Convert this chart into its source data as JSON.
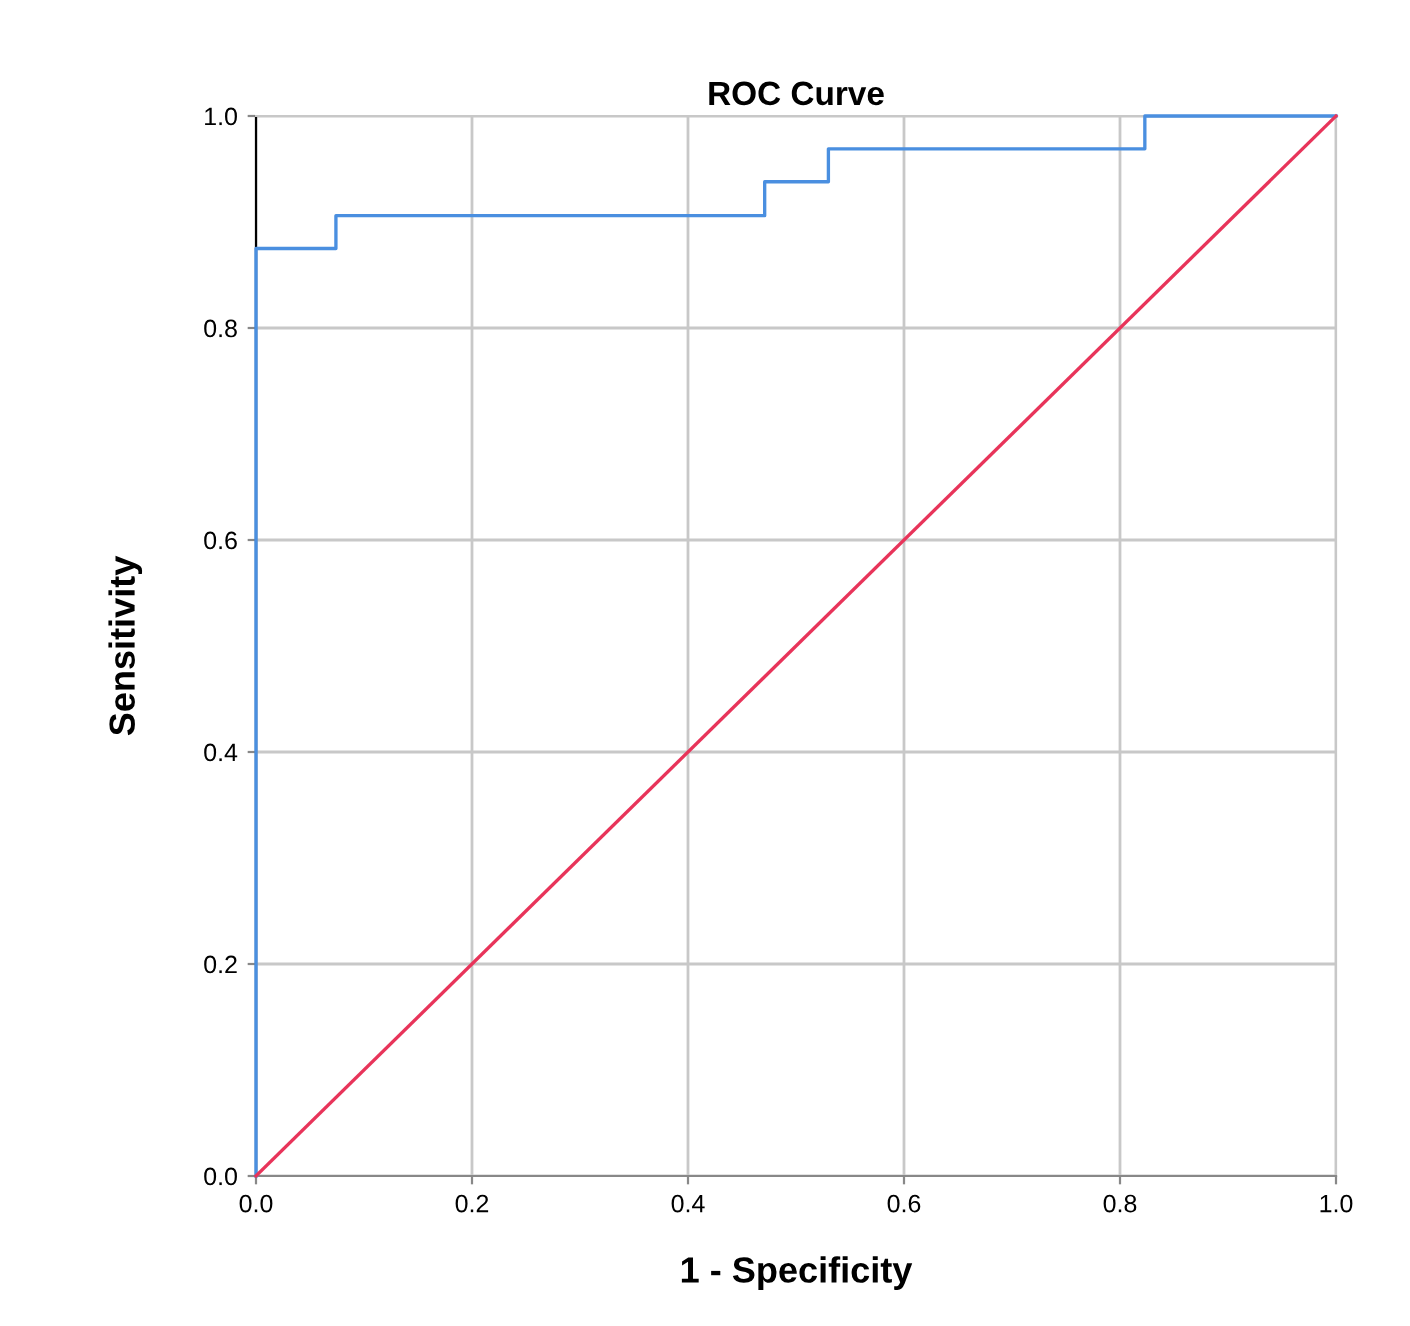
{
  "chart_data": {
    "type": "line",
    "title": "ROC Curve",
    "xlabel": "1 - Specificity",
    "ylabel": "Sensitivity",
    "series": [
      {
        "type": "step",
        "color": "#4a8fe0",
        "x": [
          0,
          0,
          0.074,
          0.471,
          0.53,
          0.823,
          1
        ],
        "values": [
          0,
          0.875,
          0.906,
          0.938,
          0.969,
          1,
          1
        ]
      },
      {
        "color": "#e8345a",
        "x": [
          0,
          1
        ],
        "values": [
          0,
          1
        ]
      }
    ],
    "xlim": [
      0,
      1
    ],
    "ylim": [
      0,
      1
    ],
    "xticks": [
      {
        "value": 0,
        "label": "0.0"
      },
      0.2,
      0.4,
      0.6,
      0.8,
      {
        "value": 1,
        "label": "1.0"
      }
    ],
    "yticks": [
      {
        "value": 0,
        "label": "0.0"
      },
      0.2,
      0.4,
      0.6,
      0.8,
      {
        "value": 1,
        "label": "1.0"
      }
    ],
    "grid": true
  }
}
